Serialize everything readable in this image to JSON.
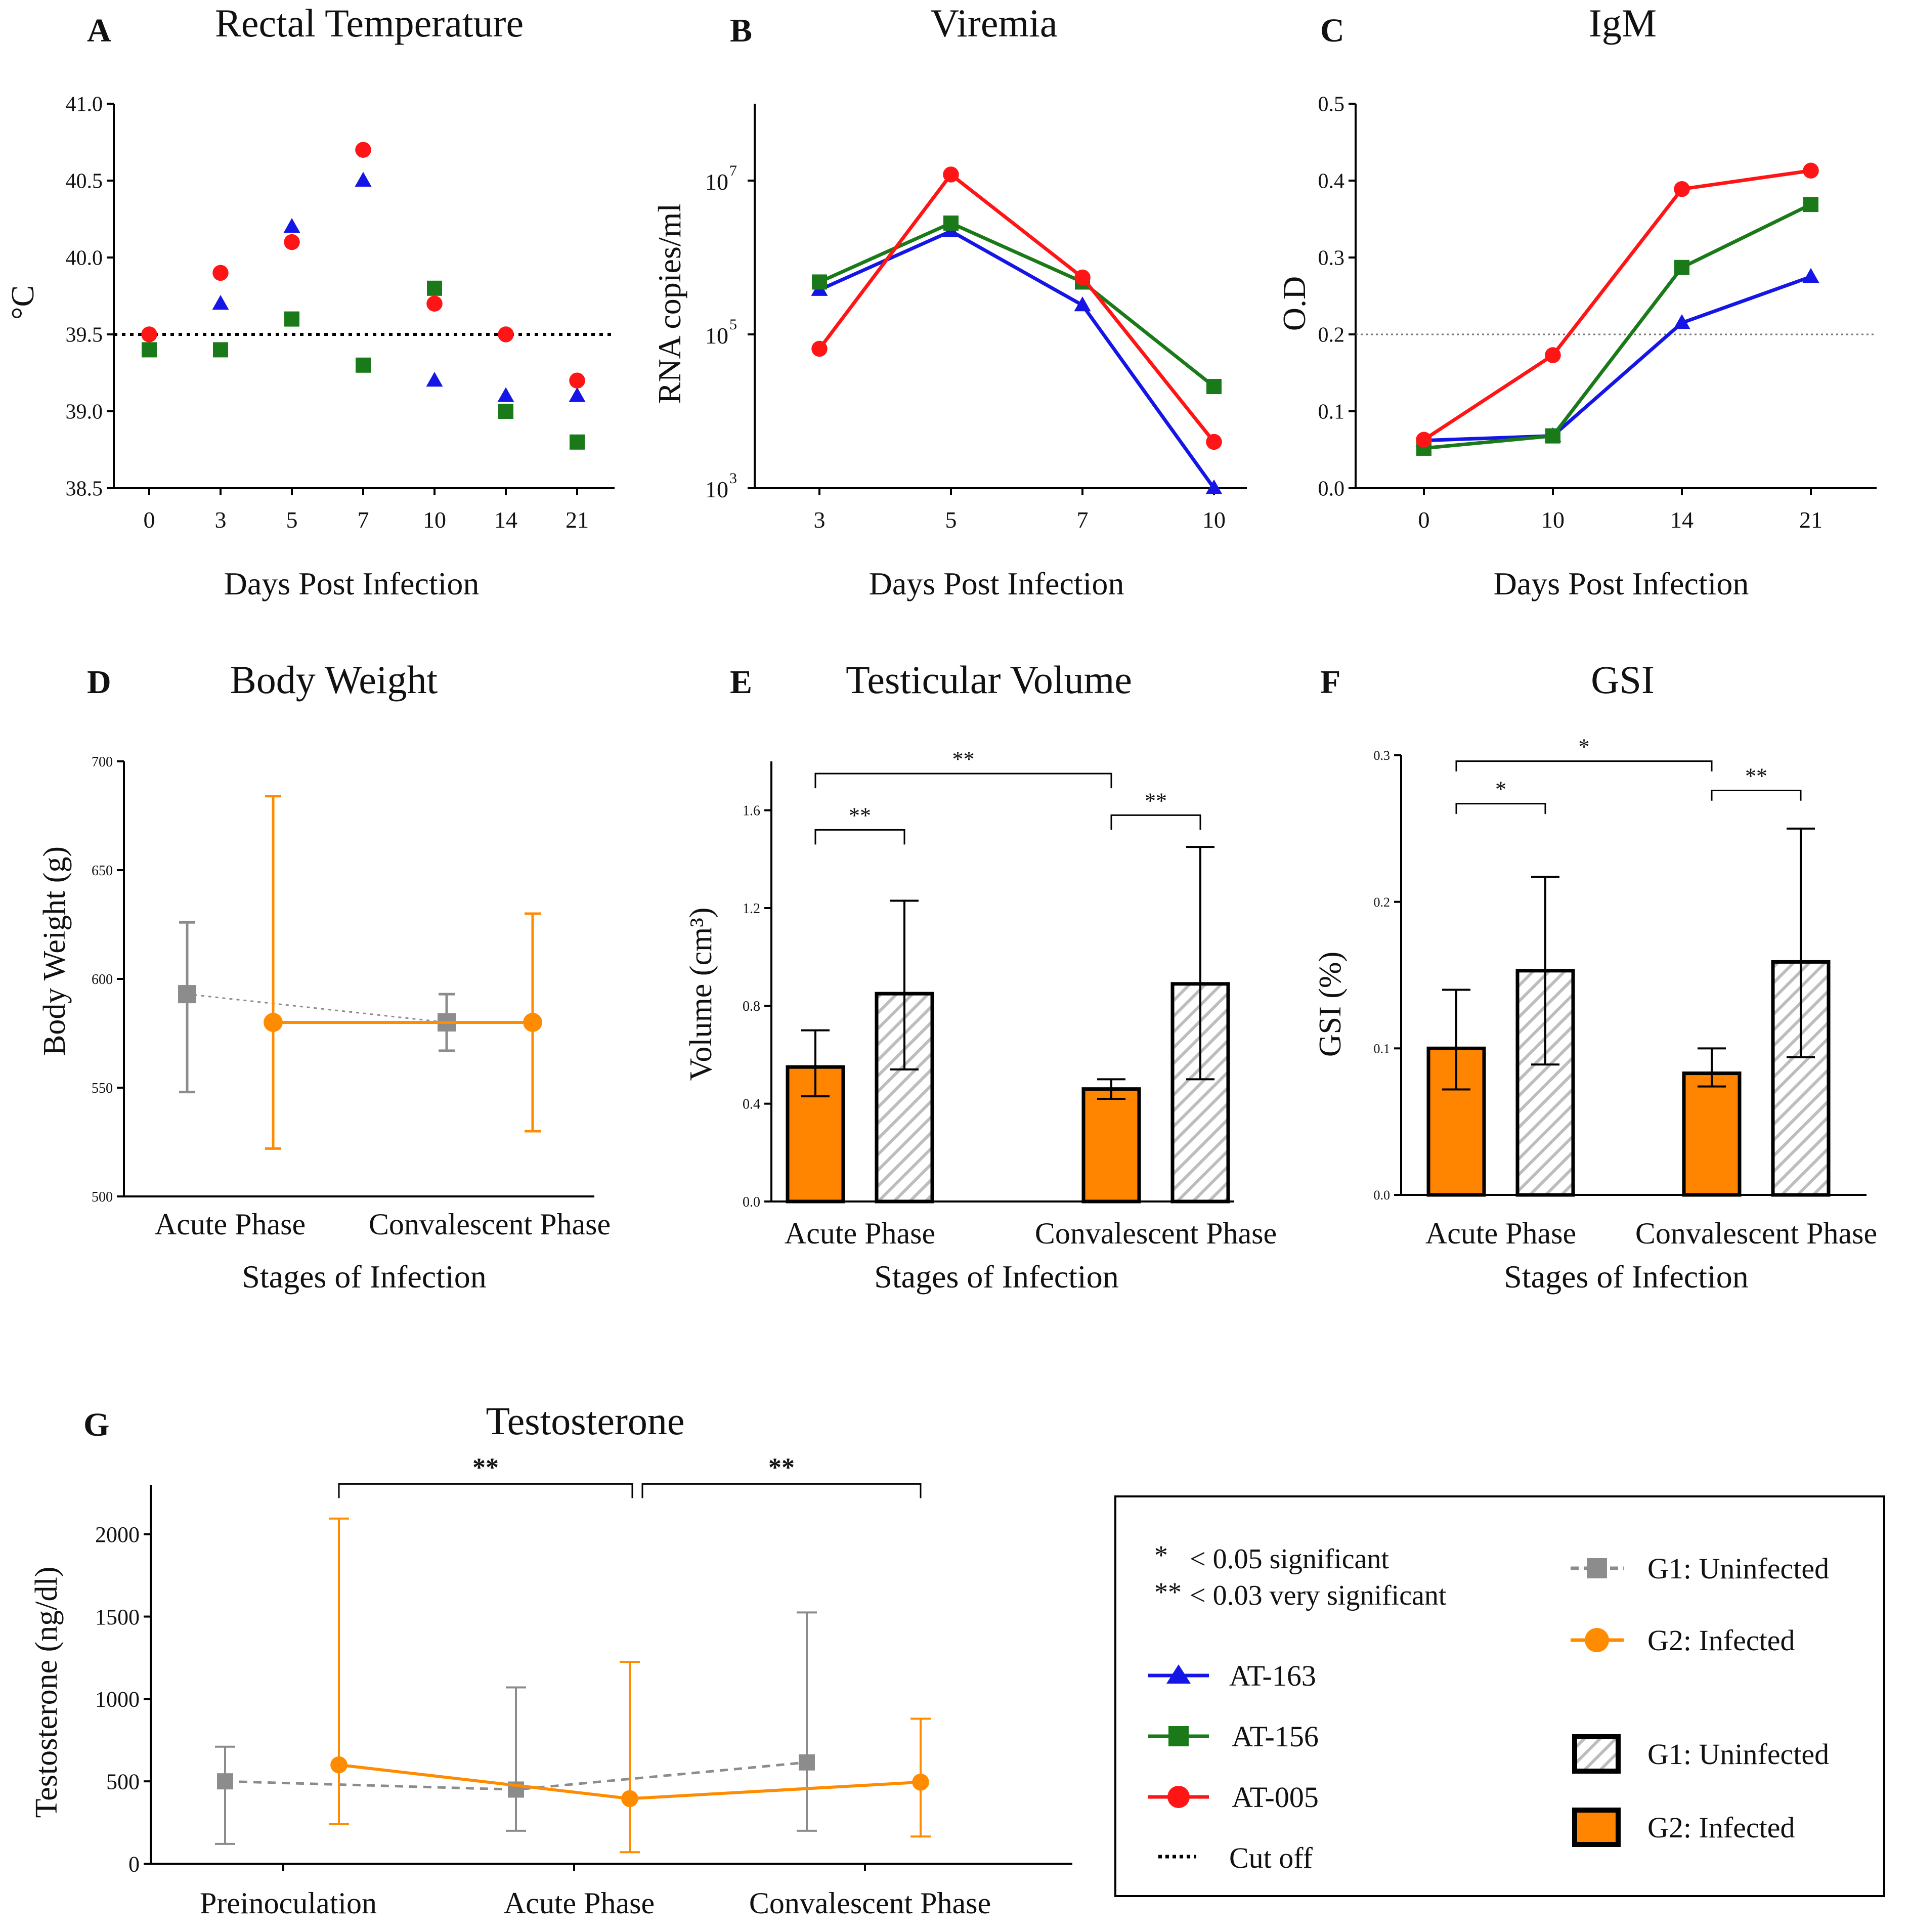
{
  "colors": {
    "at163": "#1515e6",
    "at156": "#1a7a1a",
    "at005": "#ff1515",
    "g1": "#8c8c8c",
    "g2": "#ff8c00",
    "g1_bar": "#d6d6d6",
    "g2_bar": "#ff8400",
    "axis": "#000000"
  },
  "chart_data": [
    {
      "id": "A",
      "panel_letter": "A",
      "type": "scatter",
      "title": "Rectal Temperature",
      "xlabel": "Days Post Infection",
      "ylabel": "°C",
      "categories": [
        "0",
        "3",
        "5",
        "7",
        "10",
        "14",
        "21"
      ],
      "ylim": [
        38.5,
        41.0
      ],
      "yticks": [
        "38.5",
        "39.0",
        "39.5",
        "40.0",
        "40.5",
        "41.0"
      ],
      "cutoff": 39.5,
      "series": [
        {
          "name": "AT-163",
          "marker": "triangle",
          "color_key": "at163",
          "values": [
            null,
            39.7,
            40.2,
            40.5,
            39.2,
            39.1,
            39.1
          ]
        },
        {
          "name": "AT-156",
          "marker": "square",
          "color_key": "at156",
          "values": [
            39.4,
            39.4,
            39.6,
            39.3,
            39.8,
            39.0,
            38.8
          ]
        },
        {
          "name": "AT-005",
          "marker": "circle",
          "color_key": "at005",
          "values": [
            39.5,
            39.9,
            40.1,
            40.7,
            39.7,
            39.5,
            39.2
          ]
        }
      ]
    },
    {
      "id": "B",
      "panel_letter": "B",
      "type": "line",
      "scale": "log10",
      "title": "Viremia",
      "xlabel": "Days Post Infection",
      "ylabel": "RNA copies/ml",
      "categories": [
        "3",
        "5",
        "7",
        "10"
      ],
      "ylim": [
        1000,
        100000000
      ],
      "yticks": [
        {
          "value": 1000,
          "base": "10",
          "exp": "3"
        },
        {
          "value": 100000,
          "base": "10",
          "exp": "5"
        },
        {
          "value": 10000000,
          "base": "10",
          "exp": "7"
        }
      ],
      "series": [
        {
          "name": "AT-163",
          "marker": "triangle",
          "color_key": "at163",
          "values": [
            380000,
            2200000,
            240000,
            1000
          ]
        },
        {
          "name": "AT-156",
          "marker": "square",
          "color_key": "at156",
          "values": [
            480000,
            2800000,
            480000,
            21000
          ]
        },
        {
          "name": "AT-005",
          "marker": "circle",
          "color_key": "at005",
          "values": [
            65000,
            12000000,
            550000,
            4000
          ]
        }
      ]
    },
    {
      "id": "C",
      "panel_letter": "C",
      "type": "line",
      "title": "IgM",
      "xlabel": "Days Post Infection",
      "ylabel": "O.D",
      "categories": [
        "0",
        "10",
        "14",
        "21"
      ],
      "ylim": [
        0.0,
        0.5
      ],
      "yticks": [
        "0.0",
        "0.1",
        "0.2",
        "0.3",
        "0.4",
        "0.5"
      ],
      "cutoff": 0.2,
      "series": [
        {
          "name": "AT-163",
          "marker": "triangle",
          "color_key": "at163",
          "values": [
            0.062,
            0.068,
            0.215,
            0.275
          ]
        },
        {
          "name": "AT-156",
          "marker": "square",
          "color_key": "at156",
          "values": [
            0.052,
            0.068,
            0.287,
            0.369
          ]
        },
        {
          "name": "AT-005",
          "marker": "circle",
          "color_key": "at005",
          "values": [
            0.063,
            0.173,
            0.389,
            0.413
          ]
        }
      ]
    },
    {
      "id": "D",
      "panel_letter": "D",
      "type": "line",
      "title": "Body Weight",
      "xlabel": "Stages of Infection",
      "ylabel": "Body Weight (g)",
      "categories": [
        "Acute Phase",
        "Convalescent Phase"
      ],
      "ylim": [
        500,
        700
      ],
      "yticks": [
        "500",
        "550",
        "600",
        "650",
        "700"
      ],
      "series": [
        {
          "name": "G1: Uninfected",
          "marker": "square",
          "color_key": "g1",
          "values": [
            593,
            580
          ],
          "err_low": [
            548,
            567
          ],
          "err_high": [
            626,
            593
          ]
        },
        {
          "name": "G2: Infected",
          "marker": "circle",
          "color_key": "g2",
          "values": [
            580,
            580
          ],
          "err_low": [
            522,
            530
          ],
          "err_high": [
            684,
            630
          ]
        }
      ]
    },
    {
      "id": "E",
      "panel_letter": "E",
      "type": "bar",
      "title": "Testicular Volume",
      "xlabel": "Stages of Infection",
      "ylabel": "Volume (cm³)",
      "categories": [
        "Acute Phase",
        "Convalescent Phase"
      ],
      "ylim": [
        0.0,
        1.8
      ],
      "yticks": [
        "0.0",
        "0.4",
        "0.8",
        "1.2",
        "1.6"
      ],
      "series": [
        {
          "name": "G2: Infected",
          "color_key": "g2_bar",
          "values": [
            0.55,
            0.46
          ],
          "err_low": [
            0.43,
            0.42
          ],
          "err_high": [
            0.7,
            0.5
          ]
        },
        {
          "name": "G1: Uninfected",
          "color_key": "g1_bar",
          "values": [
            0.85,
            0.89
          ],
          "err_low": [
            0.54,
            0.5
          ],
          "err_high": [
            1.23,
            1.45
          ]
        }
      ],
      "significance": [
        {
          "from": [
            0,
            0
          ],
          "to": [
            0,
            1
          ],
          "label": "**",
          "y": 1.52,
          "drop": 0.06
        },
        {
          "from": [
            1,
            0
          ],
          "to": [
            1,
            1
          ],
          "label": "**",
          "y": 1.58,
          "drop": 0.06
        },
        {
          "from": [
            0,
            0
          ],
          "to": [
            1,
            0
          ],
          "label": "**",
          "y": 1.75,
          "drop": 0.06
        }
      ]
    },
    {
      "id": "F",
      "panel_letter": "F",
      "type": "bar",
      "title": "GSI",
      "xlabel": "Stages of Infection",
      "ylabel": "GSI (%)",
      "categories": [
        "Acute Phase",
        "Convalescent Phase"
      ],
      "ylim": [
        0.0,
        0.3
      ],
      "yticks": [
        "0.0",
        "0.1",
        "0.2",
        "0.3"
      ],
      "series": [
        {
          "name": "G2: Infected",
          "color_key": "g2_bar",
          "values": [
            0.1,
            0.083
          ],
          "err_low": [
            0.072,
            0.074
          ],
          "err_high": [
            0.14,
            0.1
          ]
        },
        {
          "name": "G1: Uninfected",
          "color_key": "g1_bar",
          "values": [
            0.153,
            0.159
          ],
          "err_low": [
            0.089,
            0.094
          ],
          "err_high": [
            0.217,
            0.25
          ]
        }
      ],
      "significance": [
        {
          "from": [
            0,
            0
          ],
          "to": [
            0,
            1
          ],
          "label": "*",
          "y": 0.267,
          "drop": 0.007
        },
        {
          "from": [
            1,
            0
          ],
          "to": [
            1,
            1
          ],
          "label": "**",
          "y": 0.276,
          "drop": 0.007
        },
        {
          "from": [
            0,
            0
          ],
          "to": [
            1,
            0
          ],
          "label": "*",
          "y": 0.296,
          "drop": 0.007
        }
      ]
    },
    {
      "id": "G",
      "panel_letter": "G",
      "type": "line",
      "title": "Testosterone",
      "xlabel": "",
      "ylabel": "Testosterone (ng/dl)",
      "categories": [
        "Preinoculation",
        "Acute Phase",
        "Convalescent Phase"
      ],
      "ylim": [
        0,
        2300
      ],
      "yticks": [
        "0",
        "500",
        "1000",
        "1500",
        "2000"
      ],
      "series": [
        {
          "name": "G1: Uninfected",
          "marker": "square",
          "color_key": "g1",
          "values": [
            500,
            450,
            615
          ],
          "err_low": [
            120,
            200,
            200
          ],
          "err_high": [
            710,
            1070,
            1525
          ]
        },
        {
          "name": "G2: Infected",
          "marker": "circle",
          "color_key": "g2",
          "values": [
            600,
            395,
            495
          ],
          "err_low": [
            240,
            70,
            165
          ],
          "err_high": [
            2095,
            1225,
            880
          ]
        }
      ],
      "significance": [
        {
          "label": "**",
          "y": 2305
        },
        {
          "label": "**",
          "y": 2305
        }
      ]
    }
  ],
  "legend": {
    "sig_star": "*",
    "sig_text": "< 0.05  significant",
    "vsig_star": "**",
    "vsig_text": "< 0.03  very significant",
    "items": [
      {
        "label": "AT-163",
        "marker": "triangle",
        "color_key": "at163"
      },
      {
        "label": "AT-156",
        "marker": "square",
        "color_key": "at156"
      },
      {
        "label": "AT-005",
        "marker": "circle",
        "color_key": "at005"
      },
      {
        "label": "Cut off",
        "marker": "dotted",
        "color_key": "axis"
      }
    ],
    "group_items": [
      {
        "label": "G1: Uninfected",
        "marker": "square-dashed",
        "color_key": "g1"
      },
      {
        "label": "G2: Infected",
        "marker": "circle-line",
        "color_key": "g2"
      },
      {
        "label": "G1: Uninfected",
        "marker": "hatched-box",
        "color_key": "g1_bar"
      },
      {
        "label": "G2: Infected",
        "marker": "solid-box",
        "color_key": "g2_bar"
      }
    ]
  }
}
